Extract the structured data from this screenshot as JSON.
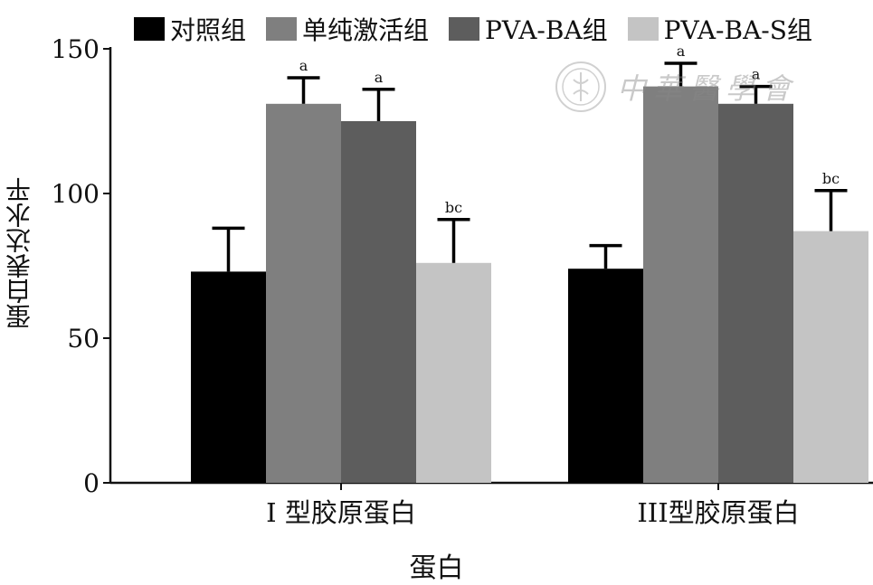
{
  "chart_data": {
    "type": "bar",
    "title": "",
    "xlabel": "蛋白",
    "ylabel": "蛋白表达水平",
    "ylim": [
      0,
      150
    ],
    "yticks": [
      0,
      50,
      100,
      150
    ],
    "categories": [
      "I 型胶原蛋白",
      "III型胶原蛋白"
    ],
    "series": [
      {
        "name": "对照组",
        "color": "#000000",
        "values": [
          73,
          74
        ],
        "errors": [
          15,
          8
        ],
        "annotations": [
          "",
          ""
        ]
      },
      {
        "name": "单纯激活组",
        "color": "#7f7f7f",
        "values": [
          131,
          137
        ],
        "errors": [
          9,
          8
        ],
        "annotations": [
          "a",
          "a"
        ]
      },
      {
        "name": "PVA-BA组",
        "color": "#5d5d5d",
        "values": [
          125,
          131
        ],
        "errors": [
          11,
          6
        ],
        "annotations": [
          "a",
          "a"
        ]
      },
      {
        "name": "PVA-BA-S组",
        "color": "#c4c4c4",
        "values": [
          76,
          87
        ],
        "errors": [
          15,
          14
        ],
        "annotations": [
          "bc",
          "bc"
        ]
      }
    ],
    "legend_position": "top"
  },
  "watermark": {
    "text": "中華醫學會"
  }
}
